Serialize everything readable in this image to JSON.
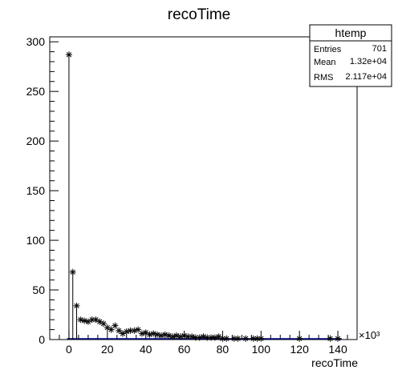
{
  "chart_data": {
    "type": "scatter",
    "title": "recoTime",
    "xlabel": "recoTime",
    "ylabel": "",
    "x_multiplier_label": "×10³",
    "xlim": [
      -10000,
      150000
    ],
    "ylim": [
      0,
      305
    ],
    "x_ticks": [
      0,
      20000,
      40000,
      60000,
      80000,
      100000,
      120000,
      140000
    ],
    "x_tick_labels": [
      "0",
      "20",
      "40",
      "60",
      "80",
      "100",
      "120",
      "140"
    ],
    "y_ticks": [
      0,
      50,
      100,
      150,
      200,
      250,
      300
    ],
    "y_tick_labels": [
      "0",
      "50",
      "100",
      "150",
      "200",
      "250",
      "300"
    ],
    "marker": "asterisk",
    "points": [
      [
        0,
        287
      ],
      [
        2000,
        68
      ],
      [
        4000,
        34
      ],
      [
        6000,
        20
      ],
      [
        8000,
        19
      ],
      [
        10000,
        18
      ],
      [
        12000,
        20
      ],
      [
        14000,
        20
      ],
      [
        16000,
        18
      ],
      [
        18000,
        16
      ],
      [
        20000,
        12
      ],
      [
        22000,
        10
      ],
      [
        24000,
        14
      ],
      [
        26000,
        9
      ],
      [
        28000,
        6
      ],
      [
        30000,
        8
      ],
      [
        32000,
        9
      ],
      [
        34000,
        9
      ],
      [
        36000,
        10
      ],
      [
        38000,
        6
      ],
      [
        40000,
        7
      ],
      [
        42000,
        5
      ],
      [
        44000,
        6
      ],
      [
        46000,
        5
      ],
      [
        48000,
        4
      ],
      [
        50000,
        5
      ],
      [
        52000,
        4
      ],
      [
        54000,
        3
      ],
      [
        56000,
        4
      ],
      [
        58000,
        3
      ],
      [
        60000,
        4
      ],
      [
        62000,
        3
      ],
      [
        64000,
        3
      ],
      [
        66000,
        2
      ],
      [
        68000,
        2
      ],
      [
        70000,
        3
      ],
      [
        72000,
        2
      ],
      [
        74000,
        2
      ],
      [
        76000,
        2
      ],
      [
        78000,
        3
      ],
      [
        80000,
        1
      ],
      [
        82000,
        1
      ],
      [
        86000,
        1
      ],
      [
        88000,
        1
      ],
      [
        92000,
        1
      ],
      [
        96000,
        1
      ],
      [
        98000,
        1
      ],
      [
        100000,
        1
      ],
      [
        120000,
        1
      ],
      [
        136000,
        1
      ],
      [
        140000,
        1
      ]
    ],
    "stats_box": {
      "title": "htemp",
      "rows": [
        {
          "label": "Entries",
          "value": "701"
        },
        {
          "label": "Mean",
          "value": "1.32e+04"
        },
        {
          "label": "RMS",
          "value": "2.117e+04"
        }
      ]
    },
    "grid": false,
    "legend": "top-right"
  },
  "colors": {
    "marker": "#000000",
    "axis": "#000000",
    "baseline": "#00008b",
    "background": "#ffffff"
  }
}
